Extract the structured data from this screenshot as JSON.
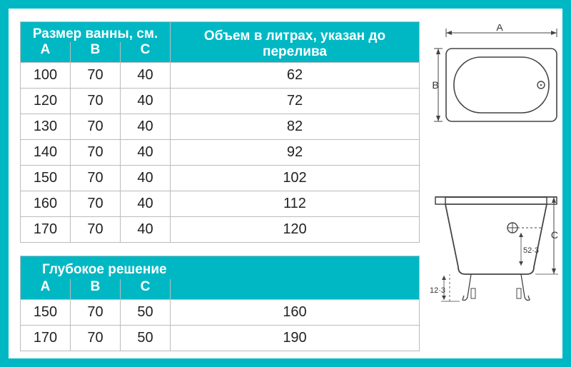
{
  "table1": {
    "header_size_title": "Размер ванны, см.",
    "header_volume_title": "Объем в литрах, указан до перелива",
    "col_a": "A",
    "col_b": "B",
    "col_c": "C",
    "rows": [
      {
        "a": "100",
        "b": "70",
        "c": "40",
        "v": "62"
      },
      {
        "a": "120",
        "b": "70",
        "c": "40",
        "v": "72"
      },
      {
        "a": "130",
        "b": "70",
        "c": "40",
        "v": "82"
      },
      {
        "a": "140",
        "b": "70",
        "c": "40",
        "v": "92"
      },
      {
        "a": "150",
        "b": "70",
        "c": "40",
        "v": "102"
      },
      {
        "a": "160",
        "b": "70",
        "c": "40",
        "v": "112"
      },
      {
        "a": "170",
        "b": "70",
        "c": "40",
        "v": "120"
      }
    ]
  },
  "table2": {
    "header_title": "Глубокое решение",
    "col_a": "A",
    "col_b": "B",
    "col_c": "C",
    "rows": [
      {
        "a": "150",
        "b": "70",
        "c": "50",
        "v": "160"
      },
      {
        "a": "170",
        "b": "70",
        "c": "50",
        "v": "190"
      }
    ]
  },
  "diagram": {
    "top": {
      "label_a": "A",
      "label_b": "B",
      "stroke": "#444",
      "fill": "#fff"
    },
    "side": {
      "label_c": "C",
      "dim1": "52·3",
      "dim2": "12·3",
      "stroke": "#444"
    }
  },
  "colors": {
    "page_bg": "#00b8c4",
    "inner_bg": "#ffffff",
    "header_bg": "#00b8c4",
    "header_text": "#ffffff",
    "grid": "#b9bbbf",
    "body_text": "#222222"
  }
}
